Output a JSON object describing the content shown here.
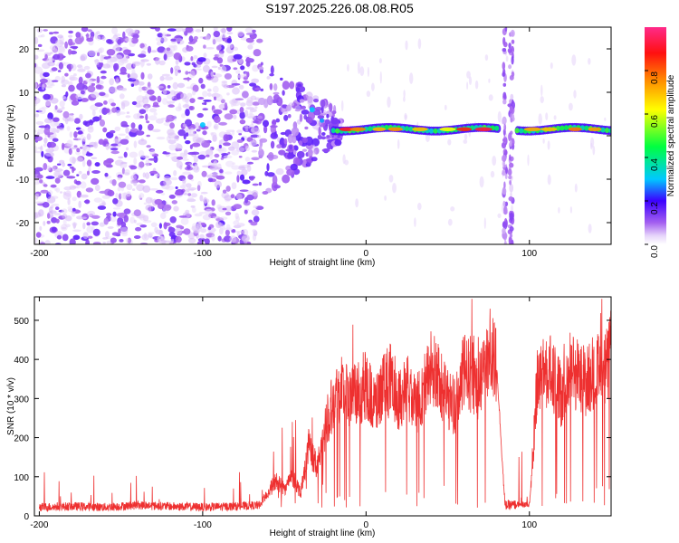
{
  "title": "S197.2025.226.08.08.R05",
  "chart_data": [
    {
      "type": "heatmap",
      "panel": "spectrogram",
      "xlabel": "Height of straight line (km)",
      "ylabel": "Frequency (Hz)",
      "xlim": [
        -203,
        150
      ],
      "ylim": [
        -25,
        25
      ],
      "xticks": [
        -200,
        -100,
        0,
        100
      ],
      "yticks": [
        -20,
        -10,
        0,
        10,
        20
      ],
      "colorbar": {
        "label": "Normalized spectral amplitude",
        "ticks": [
          0.0,
          0.2,
          0.4,
          0.6,
          0.8
        ],
        "range": [
          0,
          1
        ],
        "colors": [
          "#ffffff",
          "#c9a3f5",
          "#8b2be0",
          "#2b00ff",
          "#00c8ff",
          "#00ff40",
          "#ffff00",
          "#ff8000",
          "#ff0000",
          "#ff2a8a"
        ]
      },
      "noise_region_km": [
        -203,
        -65
      ],
      "transition_region_km": [
        -65,
        -15
      ],
      "signal_band": {
        "x_start_km": -20,
        "x_end_km": 150,
        "center_freq_hz": 1.5,
        "gap_km": [
          82,
          92
        ]
      },
      "vertical_streaks_km": [
        85,
        89
      ]
    },
    {
      "type": "line",
      "panel": "snr",
      "xlabel": "Height of straight line (km)",
      "ylabel": "SNR (10 * v/v)",
      "xlim": [
        -203,
        150
      ],
      "ylim": [
        0,
        560
      ],
      "xticks": [
        -200,
        -100,
        0,
        100
      ],
      "yticks": [
        0,
        100,
        200,
        300,
        400,
        500
      ],
      "series": [
        {
          "name": "SNR",
          "color": "#ee3030",
          "x": [
            -200,
            -180,
            -160,
            -140,
            -120,
            -100,
            -80,
            -65,
            -60,
            -55,
            -50,
            -45,
            -40,
            -35,
            -30,
            -25,
            -20,
            -15,
            -10,
            -5,
            0,
            5,
            10,
            15,
            20,
            25,
            30,
            35,
            40,
            45,
            50,
            55,
            60,
            65,
            70,
            75,
            80,
            85,
            90,
            95,
            100,
            105,
            110,
            115,
            120,
            125,
            130,
            135,
            140,
            145,
            150
          ],
          "values": [
            20,
            22,
            20,
            25,
            22,
            20,
            22,
            25,
            60,
            90,
            70,
            100,
            60,
            180,
            120,
            230,
            300,
            330,
            300,
            310,
            340,
            280,
            320,
            350,
            300,
            330,
            280,
            320,
            380,
            340,
            300,
            280,
            370,
            360,
            330,
            430,
            380,
            25,
            25,
            30,
            28,
            350,
            380,
            350,
            300,
            380,
            360,
            340,
            380,
            350,
            420
          ]
        }
      ]
    }
  ]
}
